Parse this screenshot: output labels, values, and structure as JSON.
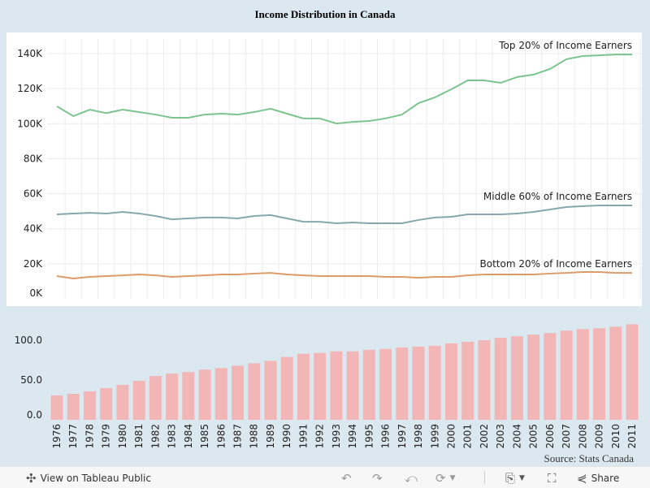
{
  "chart_data": [
    {
      "type": "line",
      "title": "Income Distribution in Canada",
      "x": [
        1976,
        1977,
        1978,
        1979,
        1980,
        1981,
        1982,
        1983,
        1984,
        1985,
        1986,
        1987,
        1988,
        1989,
        1990,
        1991,
        1992,
        1993,
        1994,
        1995,
        1996,
        1997,
        1998,
        1999,
        2000,
        2001,
        2002,
        2003,
        2004,
        2005,
        2006,
        2007,
        2008,
        2009,
        2010,
        2011
      ],
      "ylim": [
        0,
        140000
      ],
      "yticks": [
        "0K",
        "20K",
        "40K",
        "60K",
        "80K",
        "100K",
        "120K",
        "140K"
      ],
      "grid": true,
      "series": [
        {
          "name": "Top 20% of Income Earners",
          "color": "#7cc48f",
          "values": [
            109900,
            104300,
            108000,
            106000,
            108000,
            106600,
            105200,
            103400,
            103400,
            105200,
            105700,
            105200,
            106600,
            108500,
            105700,
            103000,
            103000,
            100100,
            101000,
            101500,
            103000,
            105200,
            111700,
            115000,
            119600,
            124700,
            124700,
            123300,
            126600,
            128000,
            131200,
            136800,
            138600,
            139000,
            139500,
            139500
          ]
        },
        {
          "name": "Middle 60% of Income Earners",
          "color": "#86a7ad",
          "values": [
            48200,
            48700,
            49100,
            48700,
            49600,
            48700,
            47300,
            45400,
            45900,
            46400,
            46400,
            45900,
            47300,
            47800,
            45900,
            44000,
            44000,
            43100,
            43600,
            43100,
            43100,
            43100,
            45000,
            46400,
            46800,
            48200,
            48200,
            48200,
            48700,
            49600,
            51000,
            52400,
            52900,
            53300,
            53300,
            53300
          ]
        },
        {
          "name": "Bottom 20% of Income Earners",
          "color": "#dd9b6a",
          "values": [
            13000,
            11600,
            12500,
            13000,
            13400,
            13900,
            13400,
            12500,
            13000,
            13400,
            13900,
            13900,
            14400,
            14800,
            13900,
            13400,
            13000,
            13000,
            13000,
            13000,
            12500,
            12500,
            12000,
            12500,
            12500,
            13400,
            13900,
            13900,
            13900,
            13900,
            14400,
            14800,
            15300,
            15300,
            14800,
            14800
          ]
        }
      ]
    },
    {
      "type": "bar",
      "categories": [
        "1976",
        "1977",
        "1978",
        "1979",
        "1980",
        "1981",
        "1982",
        "1983",
        "1984",
        "1985",
        "1986",
        "1987",
        "1988",
        "1989",
        "1990",
        "1991",
        "1992",
        "1993",
        "1994",
        "1995",
        "1996",
        "1997",
        "1998",
        "1999",
        "2000",
        "2001",
        "2002",
        "2003",
        "2004",
        "2005",
        "2006",
        "2007",
        "2008",
        "2009",
        "2010",
        "2011"
      ],
      "values": [
        30.6,
        32.6,
        35.7,
        39.8,
        43.9,
        49,
        55,
        58,
        60,
        63,
        65,
        68,
        71,
        74,
        79,
        83,
        84,
        86,
        86,
        88,
        89,
        91,
        92,
        93,
        96,
        98,
        100,
        103,
        105,
        107,
        109,
        112,
        114,
        115,
        117,
        120
      ],
      "yticks": [
        "0.0",
        "50.0",
        "100.0"
      ],
      "ylim": [
        0,
        125
      ],
      "color": "#f2b6b6"
    }
  ],
  "source": "Source: Stats Canada",
  "footer": {
    "view_label": "View on Tableau Public",
    "share_label": "Share"
  }
}
